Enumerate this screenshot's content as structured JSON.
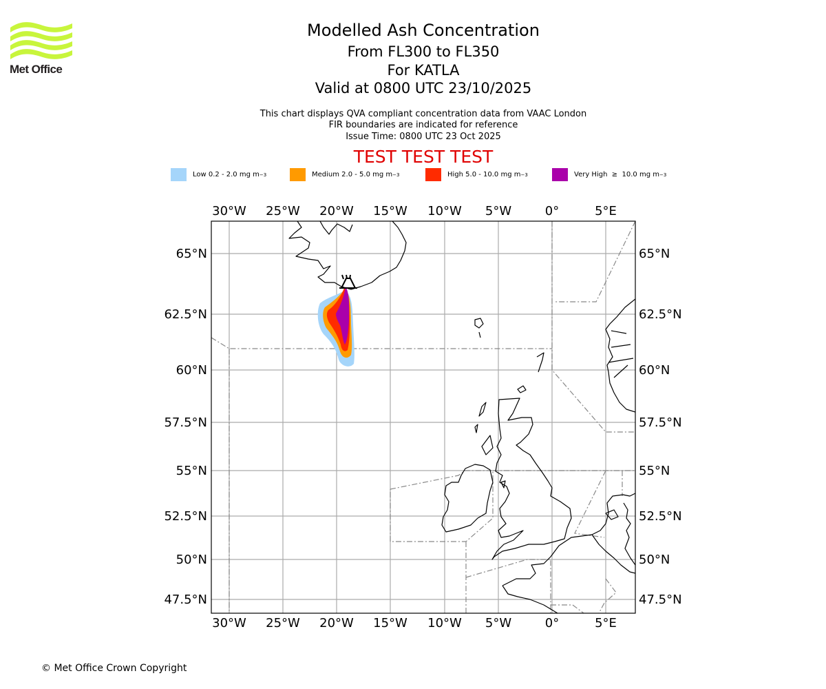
{
  "logo": {
    "text": "Met Office",
    "color": "#c8f53c"
  },
  "header": {
    "title": "Modelled Ash Concentration",
    "flight_levels": "From FL300 to FL350",
    "volcano": "For KATLA",
    "valid_time": "Valid at 0800 UTC 23/10/2025"
  },
  "notes": {
    "line1": "This chart displays QVA compliant concentration data from VAAC London",
    "line2": "FIR boundaries are indicated for reference",
    "issue_time": "Issue Time: 0800 UTC 23 Oct 2025"
  },
  "test_banner": {
    "text": "TEST TEST TEST",
    "color": "#e00000"
  },
  "legend": [
    {
      "label": "Low 0.2 - 2.0 mg m",
      "exp": "−3",
      "color": "#a5d5fa"
    },
    {
      "label": "Medium 2.0 - 5.0 mg m",
      "exp": "−3",
      "color": "#ff9a00"
    },
    {
      "label": "High 5.0 - 10.0 mg m",
      "exp": "−3",
      "color": "#ff2b00"
    },
    {
      "label": "Very High  ≥  10.0 mg m",
      "exp": "−3",
      "color": "#aa00aa"
    }
  ],
  "map": {
    "lon_ticks": [
      "30°W",
      "25°W",
      "20°W",
      "15°W",
      "10°W",
      "5°W",
      "0°",
      "5°E"
    ],
    "lat_ticks": [
      "65°N",
      "62.5°N",
      "60°N",
      "57.5°N",
      "55°N",
      "52.5°N",
      "50°N",
      "47.5°N"
    ],
    "volcano_marker": "volcano-icon",
    "colors": {
      "grid": "#aaaaaa",
      "fir": "#888888",
      "coast": "#000000"
    }
  },
  "footer": {
    "copyright": "© Met Office Crown Copyright"
  }
}
